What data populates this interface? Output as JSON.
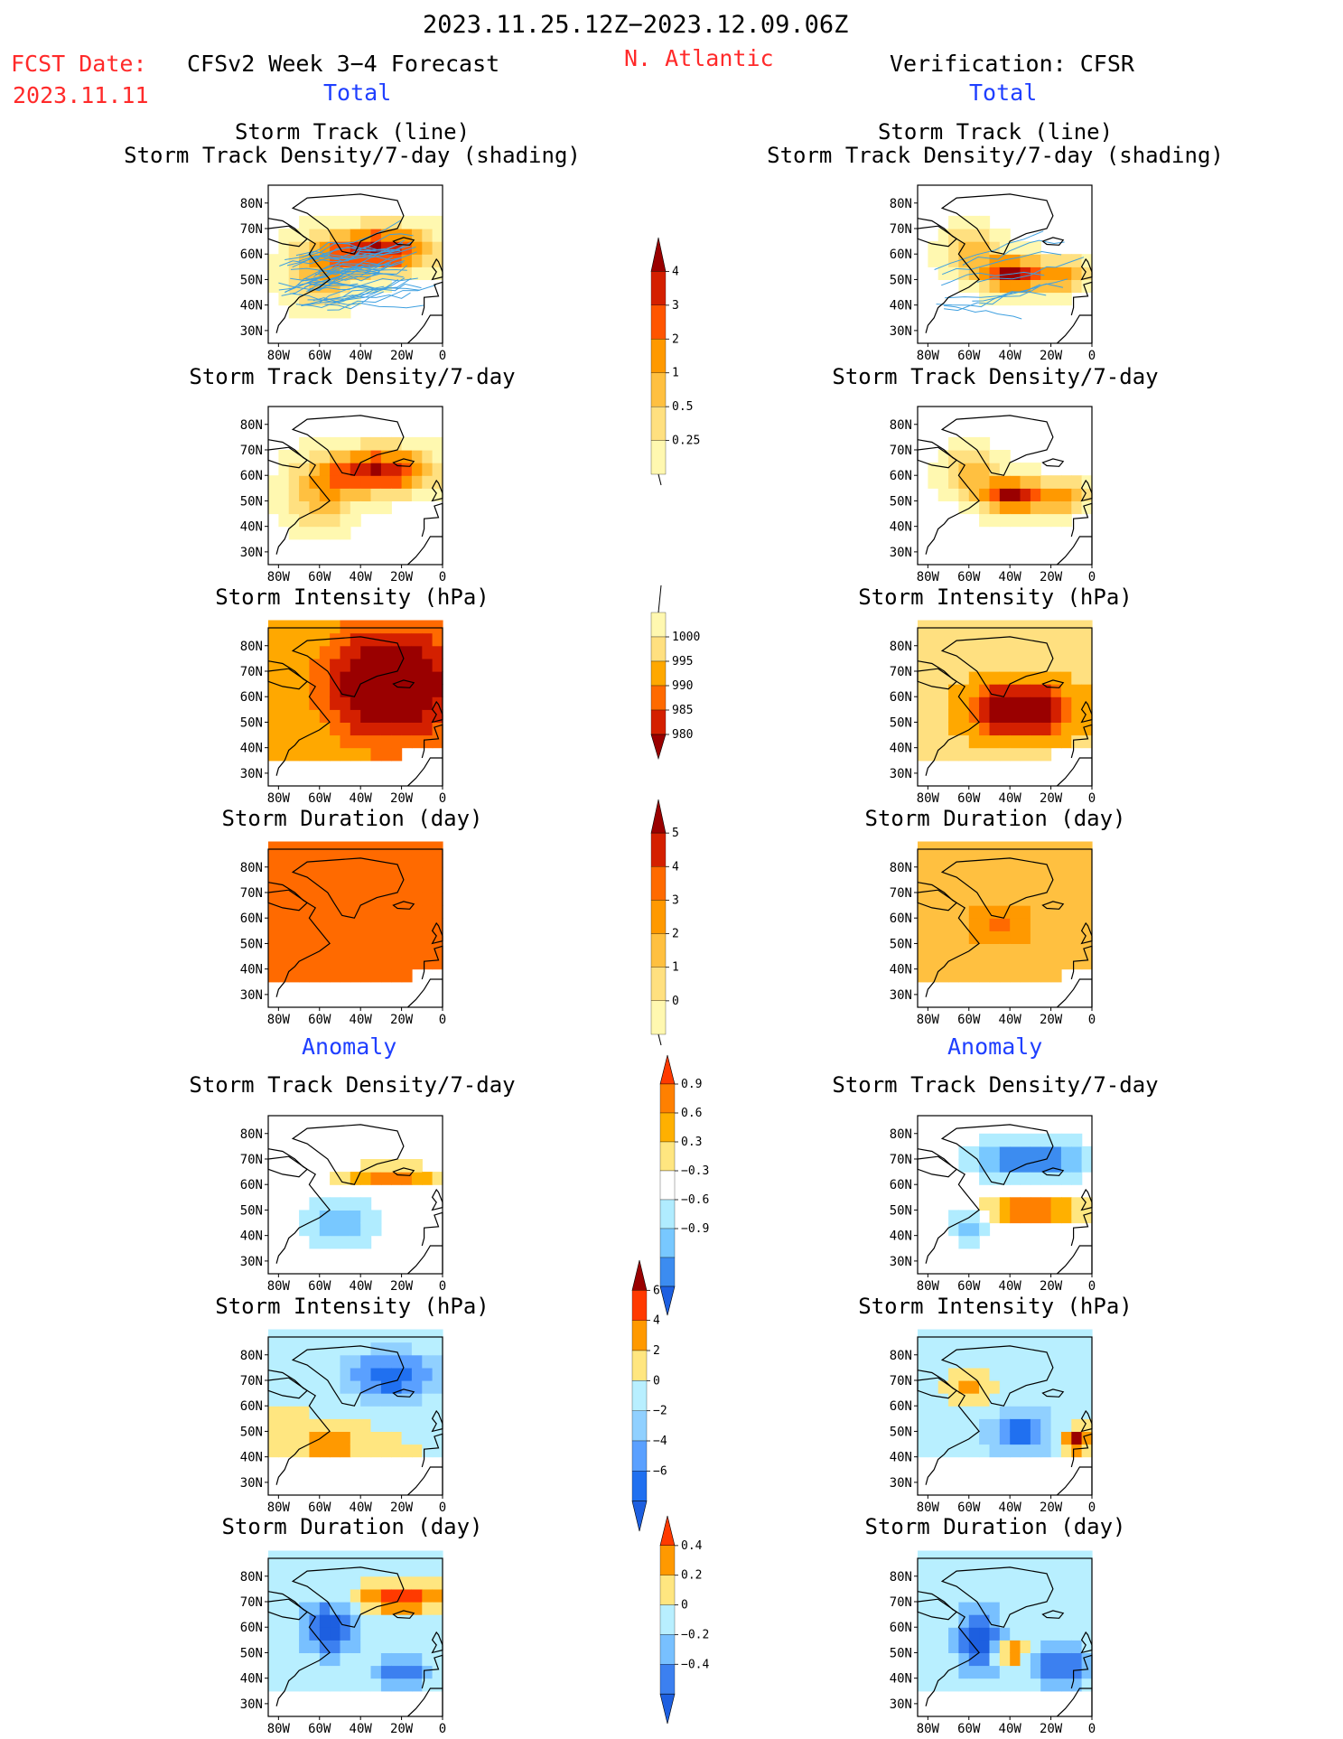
{
  "header": {
    "date_range": "2023.11.25.12Z−2023.12.09.06Z",
    "fcst_label": "FCST Date:",
    "fcst_date": "2023.11.11",
    "forecast_title": "CFSv2 Week 3−4 Forecast",
    "region": "N. Atlantic",
    "verification_title": "Verification: CFSR",
    "total_left": "Total",
    "total_right": "Total",
    "anomaly_left": "Anomaly",
    "anomaly_right": "Anomaly"
  },
  "axes": {
    "lat_labels": [
      "80N",
      "70N",
      "60N",
      "50N",
      "40N",
      "30N"
    ],
    "lon_labels": [
      "80W",
      "60W",
      "40W",
      "20W",
      "0"
    ]
  },
  "panels": [
    {
      "id": "fc-track",
      "column": "forecast",
      "row": 0,
      "title_line1": "Storm Track (line)",
      "title_line2": "Storm Track Density/7-day (shading)",
      "field": "track-density",
      "tracks": true
    },
    {
      "id": "fc-density",
      "column": "forecast",
      "row": 1,
      "title_line1": "Storm Track Density/7-day",
      "field": "track-density"
    },
    {
      "id": "fc-intensity",
      "column": "forecast",
      "row": 2,
      "title_line1": "Storm Intensity (hPa)",
      "field": "intensity"
    },
    {
      "id": "fc-duration",
      "column": "forecast",
      "row": 3,
      "title_line1": "Storm Duration (day)",
      "field": "duration"
    },
    {
      "id": "fc-anom-density",
      "column": "forecast",
      "row": 4,
      "title_line1": "Storm Track Density/7-day",
      "field": "anom-density"
    },
    {
      "id": "fc-anom-intensity",
      "column": "forecast",
      "row": 5,
      "title_line1": "Storm Intensity (hPa)",
      "field": "anom-intensity"
    },
    {
      "id": "fc-anom-duration",
      "column": "forecast",
      "row": 6,
      "title_line1": "Storm Duration (day)",
      "field": "anom-duration"
    },
    {
      "id": "vr-track",
      "column": "verification",
      "row": 0,
      "title_line1": "Storm Track (line)",
      "title_line2": "Storm Track Density/7-day (shading)",
      "field": "track-density",
      "tracks": true
    },
    {
      "id": "vr-density",
      "column": "verification",
      "row": 1,
      "title_line1": "Storm Track Density/7-day",
      "field": "track-density"
    },
    {
      "id": "vr-intensity",
      "column": "verification",
      "row": 2,
      "title_line1": "Storm Intensity (hPa)",
      "field": "intensity"
    },
    {
      "id": "vr-duration",
      "column": "verification",
      "row": 3,
      "title_line1": "Storm Duration (day)",
      "field": "duration"
    },
    {
      "id": "vr-anom-density",
      "column": "verification",
      "row": 4,
      "title_line1": "Storm Track Density/7-day",
      "field": "anom-density"
    },
    {
      "id": "vr-anom-intensity",
      "column": "verification",
      "row": 5,
      "title_line1": "Storm Intensity (hPa)",
      "field": "anom-intensity"
    },
    {
      "id": "vr-anom-duration",
      "column": "verification",
      "row": 6,
      "title_line1": "Storm Duration (day)",
      "field": "anom-duration"
    }
  ],
  "colorbars": [
    {
      "id": "cb-density",
      "labels": [
        "4",
        "3",
        "2",
        "1",
        "0.5",
        "0.25"
      ],
      "colors": [
        "#9a0000",
        "#d42000",
        "#ff5500",
        "#ff9900",
        "#ffc040",
        "#ffe080",
        "#fff8b0"
      ],
      "tail": "bottom"
    },
    {
      "id": "cb-intensity",
      "labels": [
        "1000",
        "995",
        "990",
        "985",
        "980"
      ],
      "colors": [
        "#fff8b0",
        "#ffe080",
        "#ffa800",
        "#ff6a00",
        "#d42000",
        "#9a0000"
      ],
      "tail": "top"
    },
    {
      "id": "cb-duration",
      "labels": [
        "5",
        "4",
        "3",
        "2",
        "1",
        "0"
      ],
      "colors": [
        "#9a0000",
        "#d42000",
        "#ff6a00",
        "#ff9900",
        "#ffc040",
        "#ffe080",
        "#fff8b0"
      ],
      "tail": "bottom"
    },
    {
      "id": "cb-anom-density",
      "labels": [
        "0.9",
        "0.6",
        "0.3",
        "−0.3",
        "−0.6",
        "−0.9"
      ],
      "colors": [
        "#ff3a00",
        "#ff8000",
        "#ffb000",
        "#ffe680",
        "#ffffff",
        "#b0ecff",
        "#78c8ff",
        "#3c8cf0",
        "#1d5fe0"
      ]
    },
    {
      "id": "cb-anom-intensity",
      "labels": [
        "6",
        "4",
        "2",
        "0",
        "−2",
        "−4",
        "−6"
      ],
      "colors": [
        "#9a0000",
        "#ff3a00",
        "#ff9900",
        "#ffe680",
        "#b8efff",
        "#90d0ff",
        "#5aa0ff",
        "#2070f0",
        "#1d5fe0"
      ]
    },
    {
      "id": "cb-anom-duration",
      "labels": [
        "0.4",
        "0.2",
        "0",
        "−0.2",
        "−0.4"
      ],
      "colors": [
        "#ff3a00",
        "#ff9900",
        "#ffe680",
        "#b8efff",
        "#78c0ff",
        "#3c80f0",
        "#1d5fe0"
      ]
    }
  ]
}
